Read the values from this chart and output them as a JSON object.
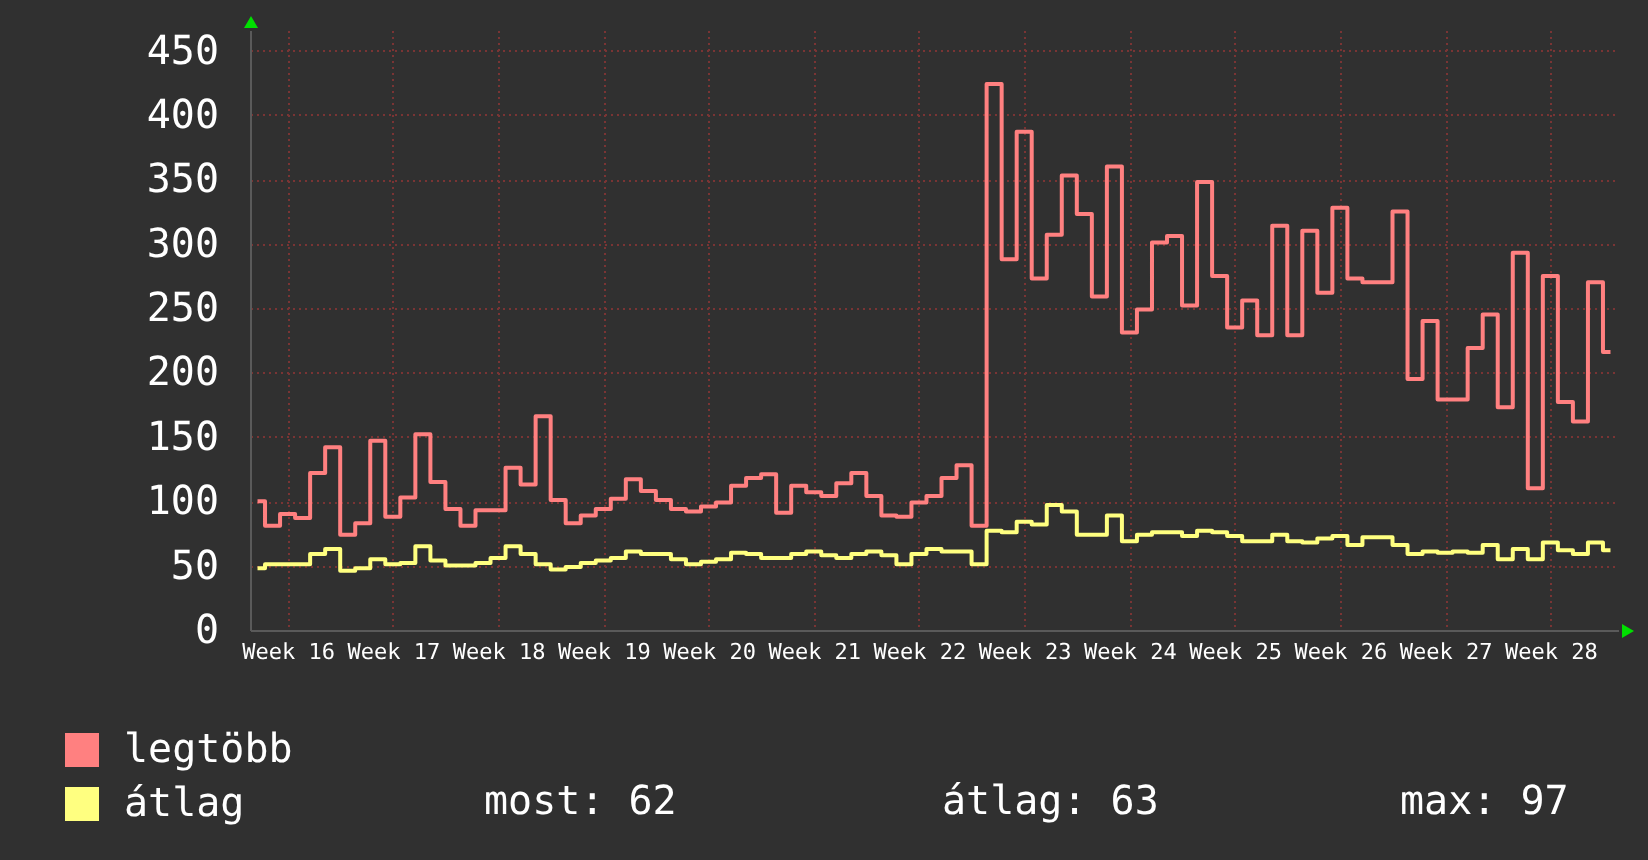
{
  "chart_data": {
    "type": "step",
    "categories": [
      null,
      null,
      "Week 16",
      null,
      null,
      null,
      null,
      null,
      null,
      "Week 17",
      null,
      null,
      null,
      null,
      null,
      null,
      "Week 18",
      null,
      null,
      null,
      null,
      null,
      null,
      "Week 19",
      null,
      null,
      null,
      null,
      null,
      null,
      "Week 20",
      null,
      null,
      null,
      null,
      null,
      null,
      "Week 21",
      null,
      null,
      null,
      null,
      null,
      null,
      "Week 22",
      null,
      null,
      null,
      null,
      null,
      null,
      "Week 23",
      null,
      null,
      null,
      null,
      null,
      null,
      "Week 24",
      null,
      null,
      null,
      null,
      null,
      null,
      "Week 25",
      null,
      null,
      null,
      null,
      null,
      null,
      "Week 26",
      null,
      null,
      null,
      null,
      null,
      null,
      "Week 27",
      null,
      null,
      null,
      null,
      null,
      null,
      "Week 28",
      null,
      null,
      null,
      null
    ],
    "ylim": [
      0,
      466
    ],
    "yticks": [
      0,
      50,
      100,
      150,
      200,
      250,
      300,
      350,
      400,
      450
    ],
    "series": [
      {
        "name": "legtöbb",
        "color": "#ff8080",
        "values": [
          100,
          81,
          90,
          87,
          122,
          142,
          74,
          83,
          147,
          88,
          103,
          152,
          115,
          94,
          81,
          93,
          93,
          126,
          113,
          166,
          101,
          83,
          89,
          94,
          102,
          117,
          108,
          101,
          94,
          92,
          96,
          99,
          112,
          118,
          121,
          91,
          112,
          107,
          104,
          114,
          122,
          104,
          89,
          88,
          99,
          104,
          118,
          128,
          81,
          424,
          288,
          387,
          273,
          307,
          353,
          323,
          259,
          360,
          231,
          249,
          301,
          306,
          252,
          348,
          275,
          235,
          256,
          229,
          314,
          229,
          310,
          262,
          328,
          273,
          270,
          270,
          325,
          195,
          240,
          179,
          179,
          219,
          245,
          173,
          293,
          110,
          275,
          177,
          162,
          270,
          216
        ]
      },
      {
        "name": "átlag",
        "color": "#ffff80",
        "values": [
          48,
          51,
          51,
          51,
          59,
          63,
          46,
          48,
          55,
          51,
          52,
          65,
          54,
          50,
          50,
          52,
          56,
          65,
          59,
          51,
          47,
          49,
          52,
          54,
          56,
          61,
          59,
          59,
          55,
          51,
          53,
          55,
          60,
          59,
          56,
          56,
          59,
          61,
          58,
          56,
          59,
          61,
          58,
          51,
          59,
          63,
          61,
          61,
          51,
          77,
          76,
          84,
          82,
          97,
          92,
          74,
          74,
          89,
          69,
          74,
          76,
          76,
          73,
          77,
          76,
          73,
          69,
          69,
          74,
          69,
          68,
          71,
          73,
          66,
          72,
          72,
          66,
          59,
          61,
          60,
          61,
          60,
          66,
          55,
          63,
          55,
          68,
          62,
          59,
          68,
          62
        ]
      }
    ],
    "legend": "bottom left",
    "grid": true,
    "line_style": "solid",
    "annotations": [
      "most: 62",
      "átlag: 63",
      "max: 97"
    ]
  }
}
